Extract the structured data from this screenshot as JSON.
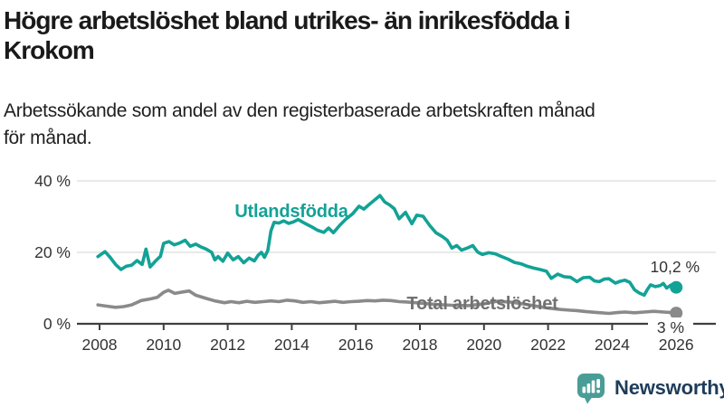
{
  "header": {
    "title_lines": [
      "Högre arbetslöshet bland utrikes- än inrikesfödda i",
      "Krokom"
    ],
    "subtitle_lines": [
      "Arbetssökande som andel av den registerbaserade arbetskraften månad",
      "för månad."
    ]
  },
  "chart_data": {
    "type": "line",
    "x_unit": "year (monthly observations)",
    "xlim": [
      2007.3,
      2026.6
    ],
    "ylim": [
      0,
      42
    ],
    "grid": "horizontal",
    "grid_color": "#dcdcdc",
    "axis_color": "#3f3f3f",
    "tick_label_color": "#333333",
    "x_ticks": [
      2008,
      2010,
      2012,
      2014,
      2016,
      2018,
      2020,
      2022,
      2024,
      2026
    ],
    "x_tick_labels": [
      "2008",
      "2010",
      "2012",
      "2014",
      "2016",
      "2018",
      "2020",
      "2022",
      "2024",
      "2026"
    ],
    "y_ticks": [
      {
        "value": 0,
        "label": "0 %"
      },
      {
        "value": 20,
        "label": "20 %"
      },
      {
        "value": 40,
        "label": "40 %"
      }
    ],
    "series": [
      {
        "name": "Utlandsfödda",
        "color": "#13a296",
        "end_value": 10.2,
        "end_label": "10,2 %",
        "points": [
          [
            2007.95,
            18.8
          ],
          [
            2008.17,
            20.2
          ],
          [
            2008.33,
            18.6
          ],
          [
            2008.5,
            16.6
          ],
          [
            2008.67,
            15.2
          ],
          [
            2008.83,
            16.1
          ],
          [
            2009.0,
            16.4
          ],
          [
            2009.17,
            17.7
          ],
          [
            2009.33,
            16.6
          ],
          [
            2009.45,
            20.9
          ],
          [
            2009.58,
            15.9
          ],
          [
            2009.75,
            17.6
          ],
          [
            2009.9,
            18.9
          ],
          [
            2010.0,
            22.5
          ],
          [
            2010.17,
            23.0
          ],
          [
            2010.33,
            22.1
          ],
          [
            2010.5,
            22.6
          ],
          [
            2010.67,
            23.4
          ],
          [
            2010.83,
            21.7
          ],
          [
            2011.0,
            22.3
          ],
          [
            2011.17,
            21.5
          ],
          [
            2011.33,
            20.9
          ],
          [
            2011.5,
            20.0
          ],
          [
            2011.6,
            17.9
          ],
          [
            2011.7,
            18.8
          ],
          [
            2011.85,
            17.5
          ],
          [
            2012.0,
            19.8
          ],
          [
            2012.17,
            17.9
          ],
          [
            2012.33,
            18.8
          ],
          [
            2012.5,
            17.1
          ],
          [
            2012.67,
            18.4
          ],
          [
            2012.83,
            17.6
          ],
          [
            2012.95,
            19.2
          ],
          [
            2013.05,
            20.0
          ],
          [
            2013.15,
            18.6
          ],
          [
            2013.25,
            20.5
          ],
          [
            2013.35,
            26.0
          ],
          [
            2013.45,
            28.4
          ],
          [
            2013.6,
            28.2
          ],
          [
            2013.75,
            28.8
          ],
          [
            2013.9,
            28.1
          ],
          [
            2014.05,
            28.5
          ],
          [
            2014.2,
            29.2
          ],
          [
            2014.35,
            28.4
          ],
          [
            2014.5,
            27.7
          ],
          [
            2014.65,
            27.0
          ],
          [
            2014.8,
            26.2
          ],
          [
            2015.0,
            25.6
          ],
          [
            2015.15,
            26.8
          ],
          [
            2015.3,
            25.5
          ],
          [
            2015.5,
            27.6
          ],
          [
            2015.7,
            29.4
          ],
          [
            2015.9,
            30.8
          ],
          [
            2016.1,
            32.9
          ],
          [
            2016.25,
            32.1
          ],
          [
            2016.4,
            33.3
          ],
          [
            2016.55,
            34.4
          ],
          [
            2016.75,
            35.9
          ],
          [
            2016.9,
            34.1
          ],
          [
            2017.05,
            33.3
          ],
          [
            2017.2,
            32.2
          ],
          [
            2017.35,
            29.4
          ],
          [
            2017.55,
            31.2
          ],
          [
            2017.75,
            28.0
          ],
          [
            2017.9,
            30.4
          ],
          [
            2018.1,
            30.1
          ],
          [
            2018.3,
            27.6
          ],
          [
            2018.5,
            25.5
          ],
          [
            2018.7,
            24.4
          ],
          [
            2018.85,
            23.4
          ],
          [
            2019.0,
            21.2
          ],
          [
            2019.15,
            21.9
          ],
          [
            2019.3,
            20.6
          ],
          [
            2019.5,
            21.3
          ],
          [
            2019.65,
            21.9
          ],
          [
            2019.8,
            20.1
          ],
          [
            2019.95,
            19.4
          ],
          [
            2020.15,
            19.9
          ],
          [
            2020.35,
            19.6
          ],
          [
            2020.55,
            18.8
          ],
          [
            2020.75,
            18.1
          ],
          [
            2020.95,
            17.2
          ],
          [
            2021.15,
            16.8
          ],
          [
            2021.35,
            16.1
          ],
          [
            2021.55,
            15.6
          ],
          [
            2021.75,
            15.2
          ],
          [
            2021.95,
            14.7
          ],
          [
            2022.1,
            12.7
          ],
          [
            2022.3,
            13.9
          ],
          [
            2022.5,
            13.2
          ],
          [
            2022.7,
            13.0
          ],
          [
            2022.9,
            11.8
          ],
          [
            2023.1,
            12.9
          ],
          [
            2023.3,
            13.0
          ],
          [
            2023.45,
            12.0
          ],
          [
            2023.6,
            11.8
          ],
          [
            2023.75,
            12.5
          ],
          [
            2023.9,
            12.6
          ],
          [
            2024.1,
            11.4
          ],
          [
            2024.25,
            11.9
          ],
          [
            2024.4,
            12.2
          ],
          [
            2024.55,
            11.6
          ],
          [
            2024.7,
            9.5
          ],
          [
            2024.85,
            8.6
          ],
          [
            2025.0,
            8.0
          ],
          [
            2025.1,
            9.6
          ],
          [
            2025.2,
            10.9
          ],
          [
            2025.35,
            10.4
          ],
          [
            2025.5,
            10.7
          ],
          [
            2025.6,
            11.3
          ],
          [
            2025.7,
            10.0
          ],
          [
            2025.85,
            10.9
          ],
          [
            2026.0,
            10.2
          ]
        ]
      },
      {
        "name": "Total arbetslöshet",
        "color": "#8a8a8a",
        "label_color": "#717171",
        "end_value": 3.0,
        "end_label": "3 %",
        "points": [
          [
            2007.95,
            5.3
          ],
          [
            2008.25,
            4.9
          ],
          [
            2008.5,
            4.6
          ],
          [
            2008.75,
            4.8
          ],
          [
            2009.0,
            5.3
          ],
          [
            2009.3,
            6.5
          ],
          [
            2009.6,
            7.0
          ],
          [
            2009.8,
            7.4
          ],
          [
            2010.0,
            8.8
          ],
          [
            2010.15,
            9.4
          ],
          [
            2010.35,
            8.5
          ],
          [
            2010.6,
            8.9
          ],
          [
            2010.8,
            9.2
          ],
          [
            2011.0,
            8.0
          ],
          [
            2011.3,
            7.2
          ],
          [
            2011.6,
            6.4
          ],
          [
            2011.9,
            5.9
          ],
          [
            2012.1,
            6.2
          ],
          [
            2012.35,
            5.9
          ],
          [
            2012.6,
            6.3
          ],
          [
            2012.85,
            6.0
          ],
          [
            2013.1,
            6.2
          ],
          [
            2013.35,
            6.4
          ],
          [
            2013.6,
            6.2
          ],
          [
            2013.85,
            6.6
          ],
          [
            2014.1,
            6.4
          ],
          [
            2014.35,
            6.0
          ],
          [
            2014.6,
            6.2
          ],
          [
            2014.85,
            5.9
          ],
          [
            2015.1,
            6.1
          ],
          [
            2015.35,
            6.3
          ],
          [
            2015.6,
            6.0
          ],
          [
            2015.85,
            6.2
          ],
          [
            2016.1,
            6.3
          ],
          [
            2016.35,
            6.5
          ],
          [
            2016.6,
            6.4
          ],
          [
            2016.85,
            6.6
          ],
          [
            2017.1,
            6.5
          ],
          [
            2017.35,
            6.2
          ],
          [
            2017.6,
            6.1
          ],
          [
            2018.0,
            5.8
          ],
          [
            2018.5,
            5.4
          ],
          [
            2019.0,
            5.2
          ],
          [
            2019.5,
            5.1
          ],
          [
            2020.0,
            5.6
          ],
          [
            2020.4,
            6.3
          ],
          [
            2020.8,
            6.1
          ],
          [
            2021.2,
            5.6
          ],
          [
            2021.6,
            5.0
          ],
          [
            2022.0,
            4.4
          ],
          [
            2022.4,
            4.0
          ],
          [
            2022.7,
            3.8
          ],
          [
            2022.9,
            3.7
          ],
          [
            2023.2,
            3.4
          ],
          [
            2023.5,
            3.2
          ],
          [
            2023.9,
            2.9
          ],
          [
            2024.2,
            3.2
          ],
          [
            2024.4,
            3.3
          ],
          [
            2024.7,
            3.1
          ],
          [
            2025.0,
            3.3
          ],
          [
            2025.3,
            3.5
          ],
          [
            2025.6,
            3.3
          ],
          [
            2025.8,
            3.2
          ],
          [
            2026.0,
            3.0
          ]
        ]
      }
    ]
  },
  "footer": {
    "brand": "Newsworthy",
    "logo_color": "#4a9d97",
    "brand_text_color": "#1e3c5a"
  }
}
